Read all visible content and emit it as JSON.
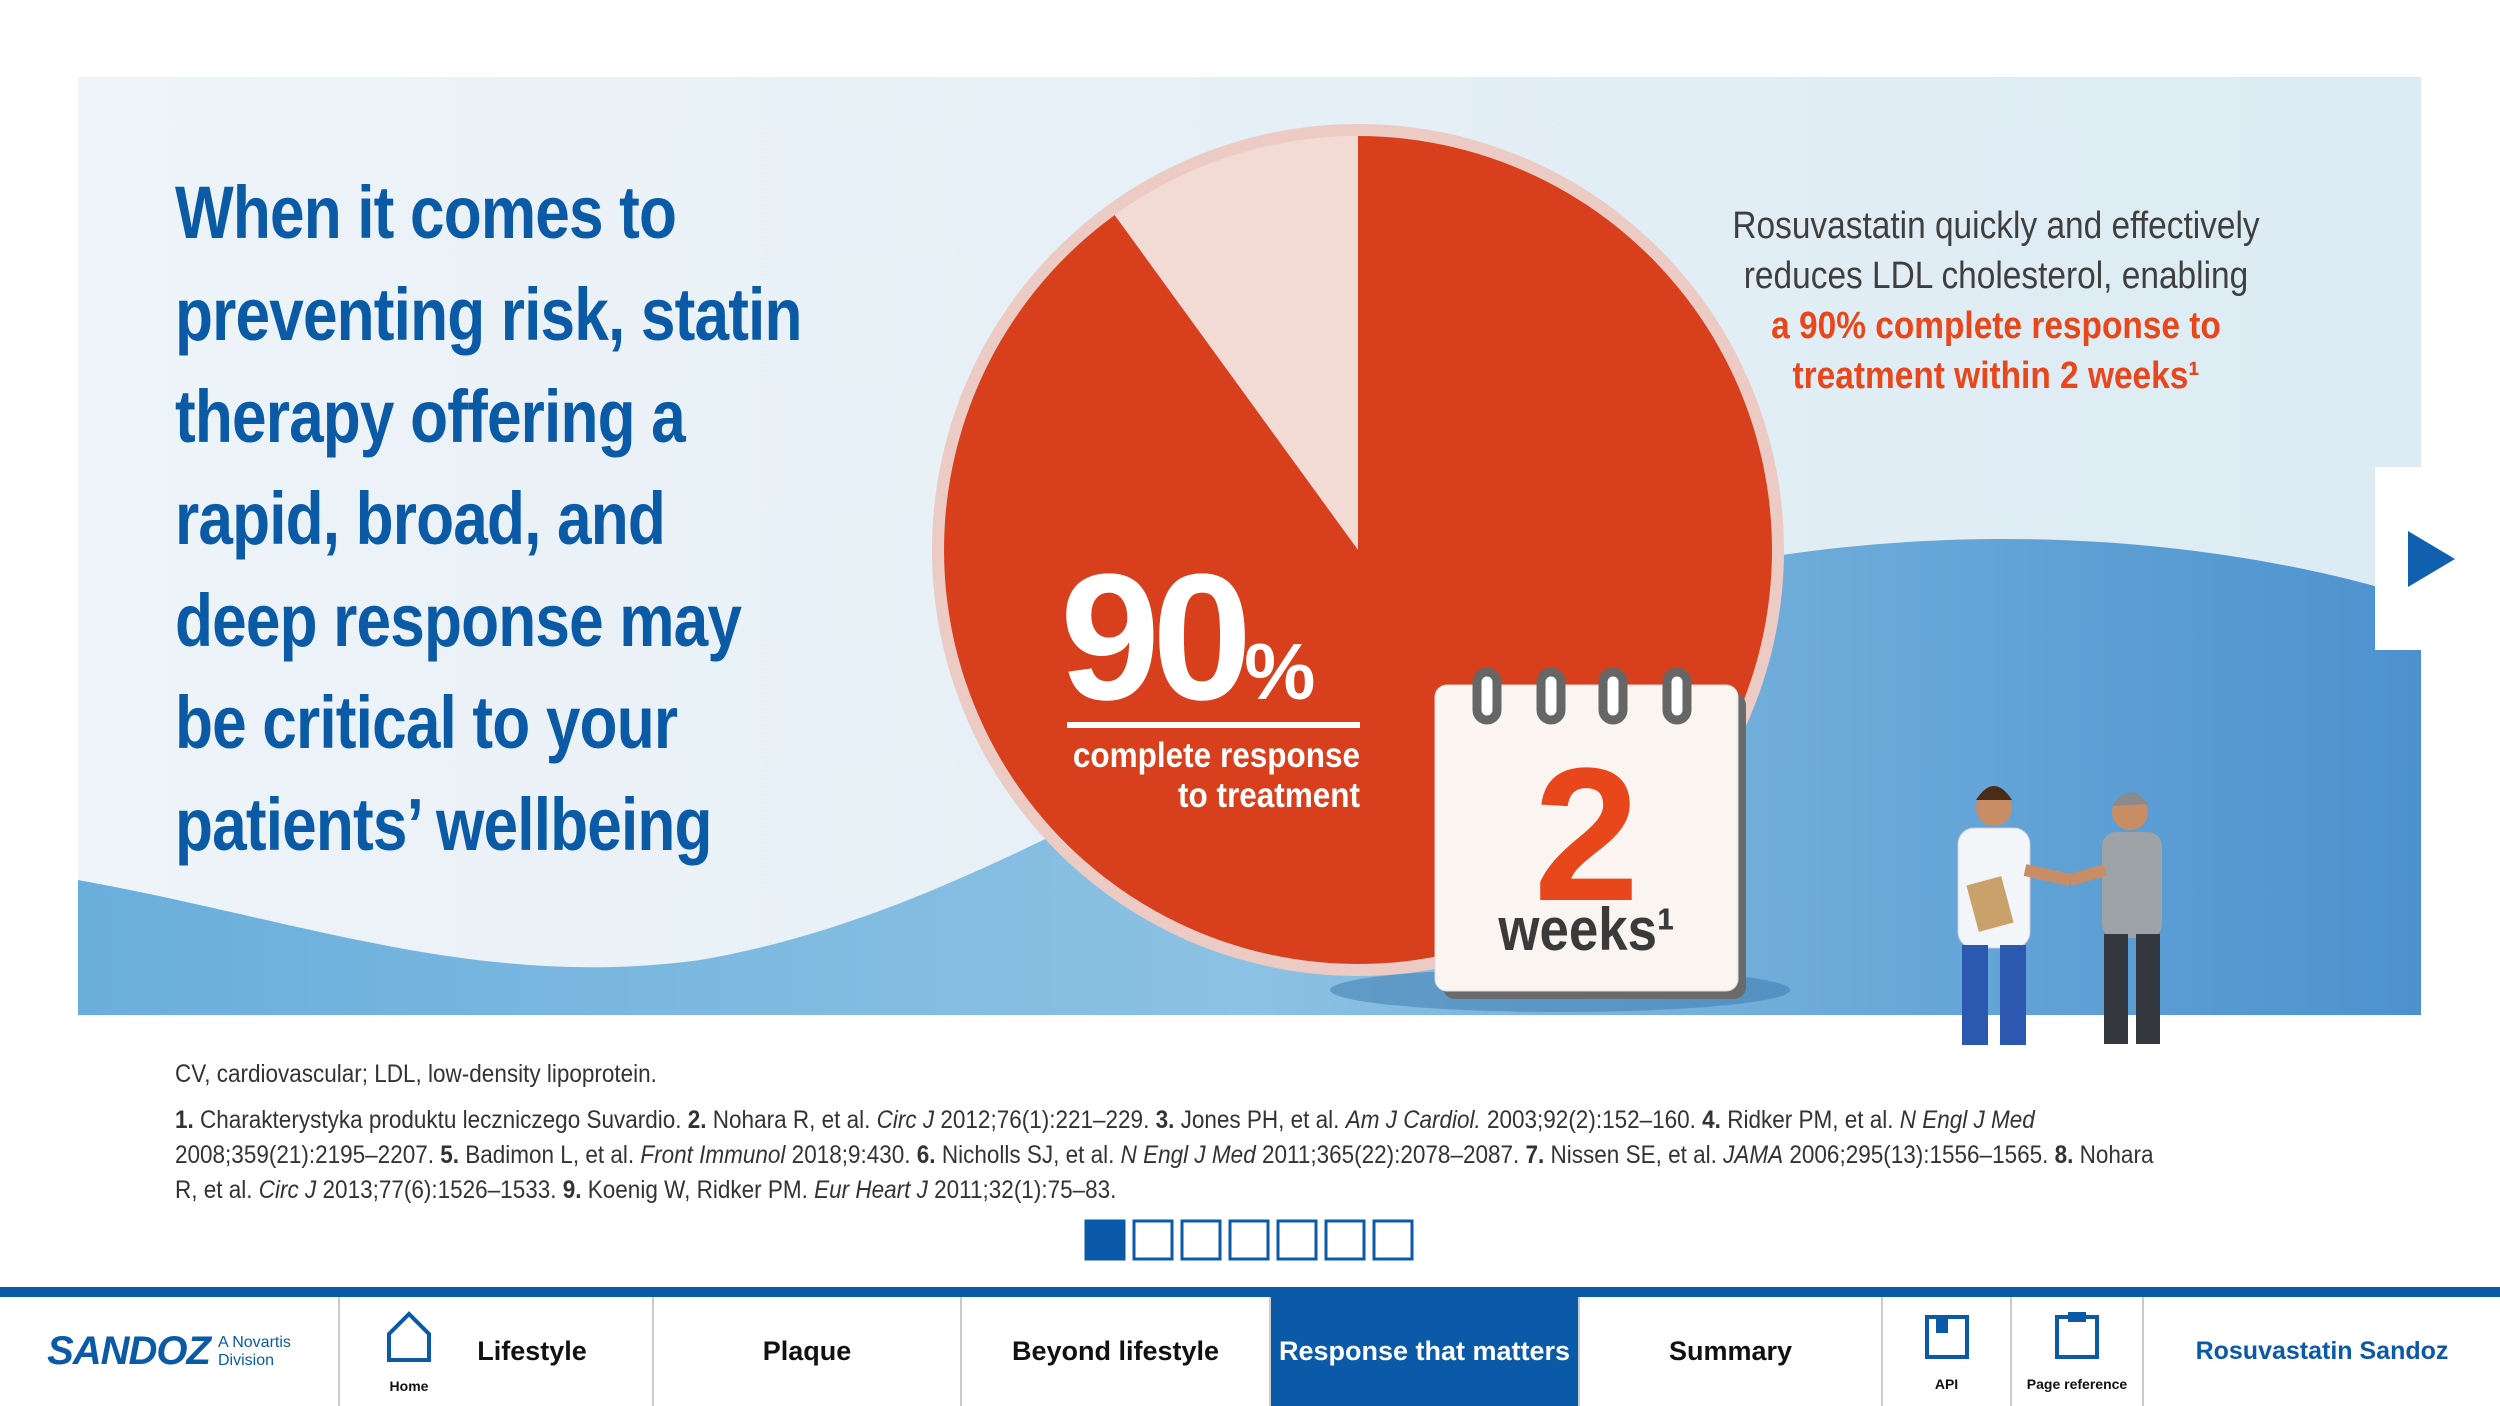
{
  "headline": {
    "lines": [
      "When it comes to",
      "preventing risk, statin",
      "therapy offering a",
      "rapid, broad, and",
      "deep response may",
      "be critical to your",
      "patients’ wellbeing"
    ]
  },
  "stat": {
    "value": 90,
    "unit": "%",
    "caption": [
      "complete response",
      "to treatment"
    ]
  },
  "calendar": {
    "number": "2",
    "label": "weeks¹"
  },
  "summary": {
    "lines": [
      "Rosuvastatin quickly and effectively",
      "reduces LDL cholesterol, enabling"
    ],
    "highlight": [
      "a 90% complete response to",
      "treatment within 2 weeks¹"
    ]
  },
  "abbreviations": "CV, cardiovascular; LDL, low-density lipoprotein.",
  "references": [
    [
      {
        "b": "1."
      },
      {
        "t": " Charakterystyka produktu leczniczego Suvardio. "
      },
      {
        "b": "2."
      },
      {
        "t": " Nohara R, et al. "
      },
      {
        "i": "Circ J"
      },
      {
        "t": " 2012;76(1):221–229. "
      },
      {
        "b": "3."
      },
      {
        "t": " Jones PH, et al. "
      },
      {
        "i": "Am J Cardiol."
      },
      {
        "t": " 2003;92(2):152–160. "
      },
      {
        "b": "4."
      },
      {
        "t": " Ridker PM, et al. "
      },
      {
        "i": "N Engl J Med"
      }
    ],
    [
      {
        "t": "2008;359(21):2195–2207. "
      },
      {
        "b": "5."
      },
      {
        "t": " Badimon L, et al. "
      },
      {
        "i": "Front Immunol"
      },
      {
        "t": " 2018;9:430. "
      },
      {
        "b": "6."
      },
      {
        "t": " Nicholls SJ, et al. "
      },
      {
        "i": "N Engl J Med"
      },
      {
        "t": " 2011;365(22):2078–2087. "
      },
      {
        "b": "7."
      },
      {
        "t": " Nissen SE, et al. "
      },
      {
        "i": "JAMA"
      },
      {
        "t": " 2006;295(13):1556–1565. "
      },
      {
        "b": "8."
      },
      {
        "t": " Nohara"
      }
    ],
    [
      {
        "t": "R, et al. "
      },
      {
        "i": "Circ J"
      },
      {
        "t": " 2013;77(6):1526–1533. "
      },
      {
        "b": "9."
      },
      {
        "t": " Koenig W, Ridker PM. "
      },
      {
        "i": "Eur Heart J"
      },
      {
        "t": " 2011;32(1):75–83."
      }
    ]
  ],
  "pagination": {
    "total": 7,
    "active": 1
  },
  "nav": {
    "logo": "SANDOZ",
    "logo_sub": [
      "A Novartis",
      "Division"
    ],
    "home": "Home",
    "tabs": [
      "Lifestyle",
      "Plaque",
      "Beyond lifestyle",
      "Response that matters",
      "Summary"
    ],
    "active_tab": 3,
    "tools": [
      "API",
      "Page reference"
    ],
    "brand": "Rosuvastatin Sandoz"
  }
}
